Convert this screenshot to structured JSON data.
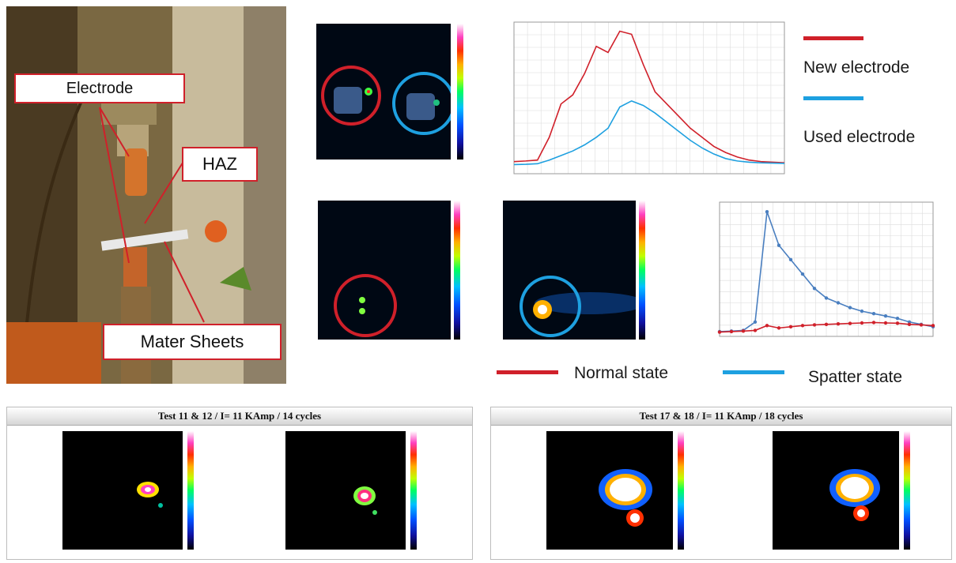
{
  "photo": {
    "labels": {
      "electrode": "Electrode",
      "haz": "HAZ",
      "sheets": "Mater Sheets"
    }
  },
  "legend_top": {
    "new": "New electrode",
    "used": "Used electrode",
    "new_color": "#d0202a",
    "used_color": "#1ea0e0"
  },
  "legend_mid": {
    "normal": "Normal state",
    "spatter": "Spatter state"
  },
  "panels": {
    "left_title": "Test 11 & 12 / I= 11 KAmp / 14 cycles",
    "right_title": "Test 17 & 18 / I= 11 KAmp / 18 cycles"
  },
  "chart_data": [
    {
      "type": "line",
      "series": [
        {
          "name": "New electrode",
          "color": "#d0202a",
          "values": [
            40,
            42,
            45,
            120,
            230,
            260,
            330,
            420,
            400,
            470,
            460,
            360,
            270,
            230,
            190,
            150,
            120,
            90,
            70,
            55,
            45,
            40,
            38,
            36
          ]
        },
        {
          "name": "Used electrode",
          "color": "#1ea0e0",
          "values": [
            30,
            31,
            33,
            45,
            60,
            75,
            95,
            120,
            150,
            220,
            240,
            225,
            200,
            170,
            140,
            110,
            85,
            65,
            50,
            42,
            38,
            36,
            35,
            34
          ]
        }
      ]
    },
    {
      "type": "line",
      "series": [
        {
          "name": "Spatter state",
          "color": "#4a7fc0",
          "values": [
            20,
            22,
            25,
            60,
            520,
            380,
            320,
            260,
            200,
            160,
            140,
            120,
            105,
            95,
            85,
            75,
            60,
            50,
            40
          ]
        },
        {
          "name": "Normal state",
          "color": "#d0202a",
          "values": [
            18,
            20,
            22,
            25,
            45,
            35,
            40,
            45,
            48,
            50,
            52,
            54,
            56,
            58,
            56,
            55,
            50,
            48,
            45
          ]
        }
      ]
    }
  ]
}
